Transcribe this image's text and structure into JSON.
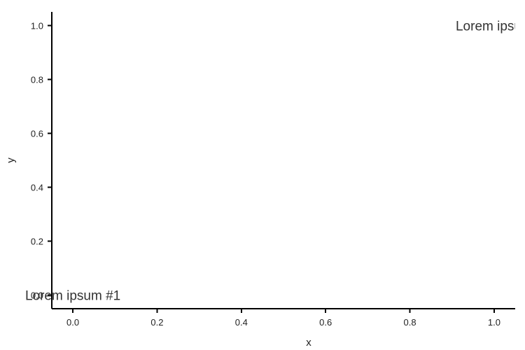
{
  "chart_data": {
    "type": "scatter",
    "title": "",
    "xlabel": "x",
    "ylabel": "y",
    "xlim": [
      -0.05,
      1.05
    ],
    "ylim": [
      -0.05,
      1.05
    ],
    "xticks": [
      0.0,
      0.2,
      0.4,
      0.6,
      0.8,
      1.0
    ],
    "yticks": [
      0.0,
      0.2,
      0.4,
      0.6,
      0.8,
      1.0
    ],
    "xtick_labels": [
      "0.0",
      "0.2",
      "0.4",
      "0.6",
      "0.8",
      "1.0"
    ],
    "ytick_labels": [
      "0.0",
      "0.2",
      "0.4",
      "0.6",
      "0.8",
      "1.0"
    ],
    "grid": false,
    "series": [],
    "annotations": [
      {
        "text": "Lorem ipsum #1",
        "x": 0.0,
        "y": 0.0,
        "anchor": "middle"
      },
      {
        "text": "Lorem ipsum",
        "x": 1.0,
        "y": 1.0,
        "anchor": "middle"
      }
    ]
  }
}
